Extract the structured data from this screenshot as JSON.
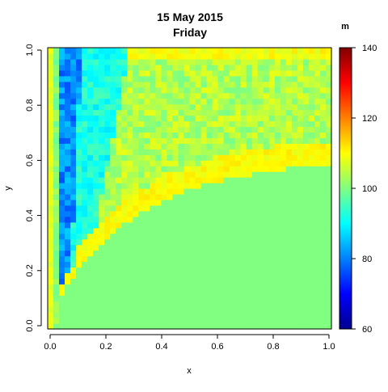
{
  "chart_data": {
    "type": "heatmap",
    "title": "15 May 2015",
    "subtitle": "Friday",
    "xlabel": "x",
    "ylabel": "y",
    "xlim": [
      0,
      1
    ],
    "ylim": [
      0,
      1
    ],
    "x_ticks": [
      "0.0",
      "0.2",
      "0.4",
      "0.6",
      "0.8",
      "1.0"
    ],
    "y_ticks": [
      "0.0",
      "0.2",
      "0.4",
      "0.6",
      "0.8",
      "1.0"
    ],
    "colorbar": {
      "label": "m",
      "min": 60,
      "max": 140,
      "ticks": [
        "60",
        "80",
        "100",
        "120",
        "140"
      ],
      "palette": [
        "#00008f",
        "#0000ff",
        "#0080ff",
        "#00ffff",
        "#80ff80",
        "#ffff00",
        "#ff8000",
        "#ff0000",
        "#800000"
      ]
    },
    "grid": {
      "nx": 50,
      "ny": 50,
      "background_value": 100,
      "description_values": {
        "left_edge_column": 108,
        "deep_blue_band": 80,
        "cyan_band": 92,
        "upper_right_mixed": 103,
        "boundary_ridge": 110
      }
    }
  }
}
